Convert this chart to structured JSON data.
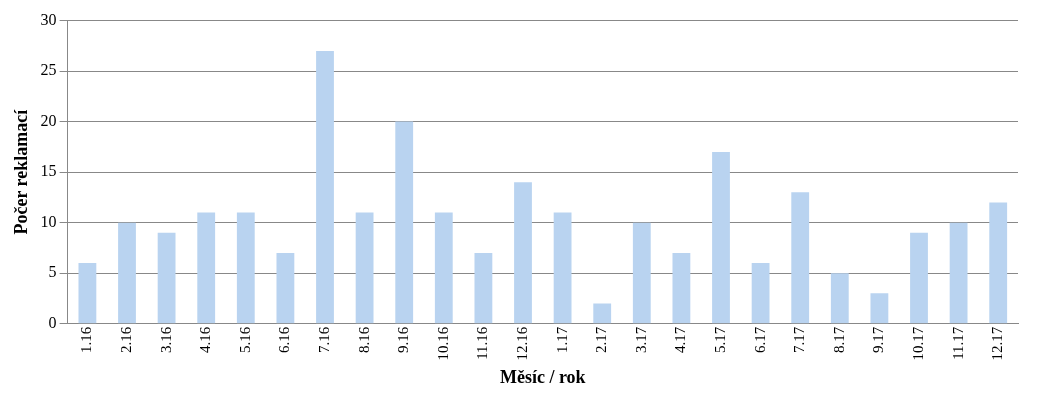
{
  "chart_data": {
    "type": "bar",
    "xlabel": "Měsíc / rok",
    "ylabel": "Počer reklamací",
    "categories": [
      "1.16",
      "2.16",
      "3.16",
      "4.16",
      "5.16",
      "6.16",
      "7.16",
      "8.16",
      "9.16",
      "10.16",
      "11.16",
      "12.16",
      "1.17",
      "2.17",
      "3.17",
      "4.17",
      "5.17",
      "6.17",
      "7.17",
      "8.17",
      "9.17",
      "10.17",
      "11.17",
      "12.17"
    ],
    "values": [
      6,
      10,
      9,
      11,
      11,
      7,
      27,
      11,
      20,
      11,
      7,
      14,
      11,
      2,
      10,
      7,
      17,
      6,
      13,
      5,
      3,
      9,
      10,
      12
    ],
    "color": "#b9d3f0",
    "ylim": [
      0,
      30
    ],
    "yticks": [
      0,
      5,
      10,
      15,
      20,
      25,
      30
    ],
    "grid": "y",
    "legend": false
  }
}
